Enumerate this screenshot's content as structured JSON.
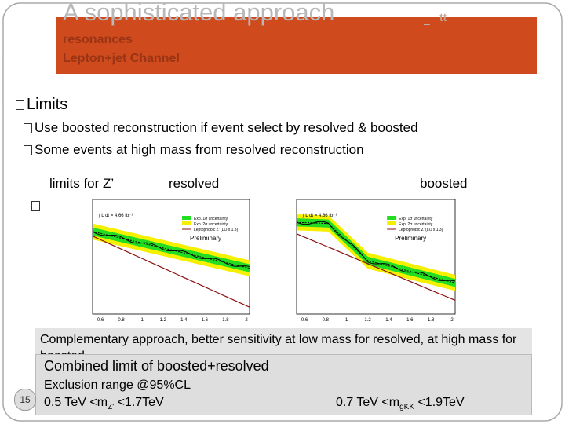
{
  "header": {
    "title": "A sophisticated approach",
    "title_suffix": "tt",
    "line1": "resonances",
    "line2": "Lepton+jet Channel"
  },
  "bullets": {
    "main": "Limits",
    "sub": [
      "Use boosted reconstruction if event select by resolved & boosted",
      "Some events at high mass from resolved reconstruction"
    ]
  },
  "figure_labels": {
    "lead": "limits for Z’",
    "left": "resolved",
    "right": "boosted"
  },
  "plots": [
    {
      "lumi": "∫ L dt = 4.66 fb⁻¹",
      "legend": [
        "Exp. 1σ uncertainty",
        "Exp. 2σ uncertainty",
        "Leptophobic Z’ (LO x 1.3)"
      ],
      "status": "Preliminary",
      "xticks": [
        "0.6",
        "0.8",
        "1",
        "1.2",
        "1.4",
        "1.6",
        "1.8",
        "2"
      ]
    },
    {
      "lumi": "∫ L dt = 4.66 fb⁻¹",
      "legend": [
        "Exp. 1σ uncertainty",
        "Exp. 2σ uncertainty",
        "Leptophobic Z’ (LO x 1.3)"
      ],
      "status": "Preliminary",
      "xticks": [
        "0.6",
        "0.8",
        "1",
        "1.2",
        "1.4",
        "1.6",
        "1.8",
        "2"
      ]
    }
  ],
  "caption": "Complementary approach, better sensitivity at low mass for resolved, at high mass for boosted",
  "summary": {
    "title": "Combined limit of boosted+resolved",
    "line": "Exclusion range @95%CL",
    "left": {
      "text": "0.5 TeV <m",
      "sub": "Z'",
      "tail": " <1.7TeV"
    },
    "right": {
      "text": "0.7 TeV <m",
      "sub": "gKK",
      "tail": " <1.9TeV"
    }
  },
  "page_number": "15"
}
